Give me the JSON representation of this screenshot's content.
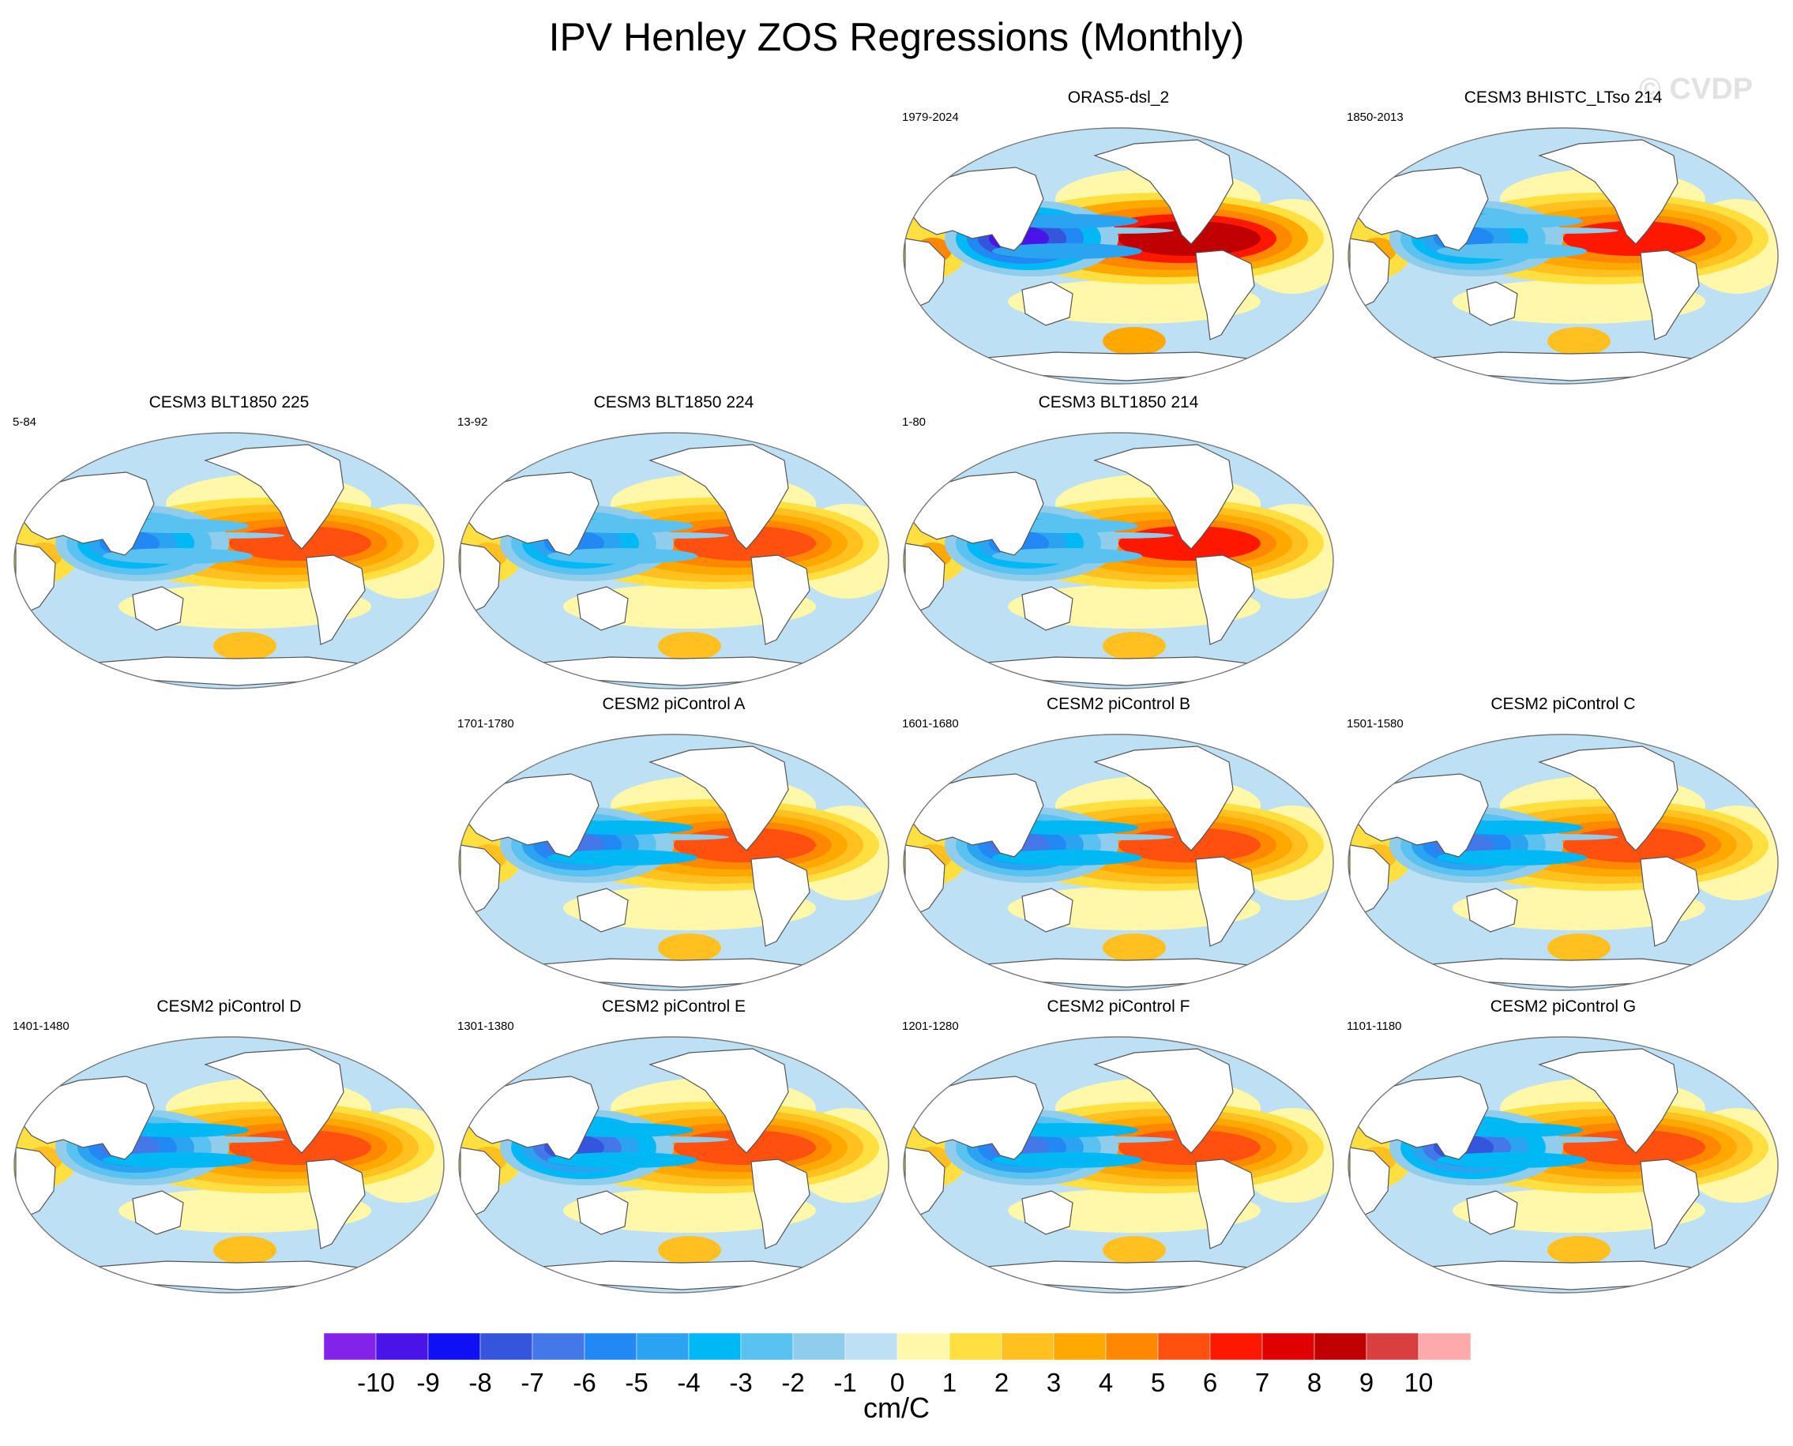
{
  "chart_data": {
    "type": "heatmap",
    "title": "IPV Henley ZOS Regressions (Monthly)",
    "watermark": "© CVDP",
    "projection": "Robinson (Pacific-centred)",
    "field": "sea surface height regression onto IPV Henley index",
    "colorbar": {
      "ticks": [
        "-10",
        "-9",
        "-8",
        "-7",
        "-6",
        "-5",
        "-4",
        "-3",
        "-2",
        "-1",
        "0",
        "1",
        "2",
        "3",
        "4",
        "5",
        "6",
        "7",
        "8",
        "9",
        "10"
      ],
      "units": "cm/C",
      "colors": [
        "#8322e8",
        "#4a13e8",
        "#1010f4",
        "#3555dd",
        "#4477e8",
        "#2288f4",
        "#2aa4f0",
        "#00b8f4",
        "#5ac2f0",
        "#90ccec",
        "#bee0f4",
        "#fff8a8",
        "#ffe040",
        "#ffc020",
        "#ffa800",
        "#ff8800",
        "#ff5010",
        "#ff1800",
        "#e00000",
        "#c00000",
        "#d84040",
        "#ffaaaa"
      ]
    },
    "panels": [
      {
        "id": "orass5",
        "title": "ORAS5-dsl_2",
        "years": "1979-2024",
        "row": 0,
        "col": 2,
        "max_positive": 8,
        "min_negative": -10
      },
      {
        "id": "bhistc",
        "title": "CESM3 BHISTC_LTso 214",
        "years": "1850-2013",
        "row": 0,
        "col": 3,
        "max_positive": 6,
        "min_negative": -6
      },
      {
        "id": "blt225",
        "title": "CESM3 BLT1850 225",
        "years": "5-84",
        "row": 1,
        "col": 0,
        "max_positive": 5,
        "min_negative": -6
      },
      {
        "id": "blt224",
        "title": "CESM3 BLT1850 224",
        "years": "13-92",
        "row": 1,
        "col": 1,
        "max_positive": 5,
        "min_negative": -6
      },
      {
        "id": "blt214",
        "title": "CESM3 BLT1850 214",
        "years": "1-80",
        "row": 1,
        "col": 2,
        "max_positive": 6,
        "min_negative": -6
      },
      {
        "id": "picA",
        "title": "CESM2 piControl A",
        "years": "1701-1780",
        "row": 2,
        "col": 1,
        "max_positive": 5,
        "min_negative": -7
      },
      {
        "id": "picB",
        "title": "CESM2 piControl B",
        "years": "1601-1680",
        "row": 2,
        "col": 2,
        "max_positive": 5,
        "min_negative": -7
      },
      {
        "id": "picC",
        "title": "CESM2 piControl C",
        "years": "1501-1580",
        "row": 2,
        "col": 3,
        "max_positive": 5,
        "min_negative": -7
      },
      {
        "id": "picD",
        "title": "CESM2 piControl D",
        "years": "1401-1480",
        "row": 3,
        "col": 0,
        "max_positive": 5,
        "min_negative": -7
      },
      {
        "id": "picE",
        "title": "CESM2 piControl E",
        "years": "1301-1380",
        "row": 3,
        "col": 1,
        "max_positive": 5,
        "min_negative": -8
      },
      {
        "id": "picF",
        "title": "CESM2 piControl F",
        "years": "1201-1280",
        "row": 3,
        "col": 2,
        "max_positive": 5,
        "min_negative": -7
      },
      {
        "id": "picG",
        "title": "CESM2 piControl G",
        "years": "1101-1180",
        "row": 3,
        "col": 3,
        "max_positive": 5,
        "min_negative": -8
      }
    ]
  }
}
